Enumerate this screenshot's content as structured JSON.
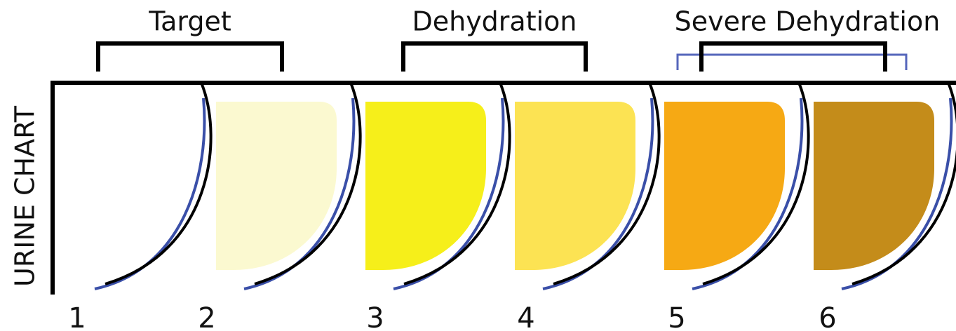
{
  "title": "URINE CHART",
  "groups": [
    {
      "label": "Target",
      "from": 0,
      "to": 1
    },
    {
      "label": "Dehydration",
      "from": 2,
      "to": 3
    },
    {
      "label": "Severe Dehydration",
      "from": 4,
      "to": 5
    }
  ],
  "swatches": [
    {
      "number": "1",
      "color": "#ffffff"
    },
    {
      "number": "2",
      "color": "#fbf9d0"
    },
    {
      "number": "3",
      "color": "#f6ef1a"
    },
    {
      "number": "4",
      "color": "#fce353"
    },
    {
      "number": "5",
      "color": "#f6a914"
    },
    {
      "number": "6",
      "color": "#c48c1a"
    }
  ]
}
